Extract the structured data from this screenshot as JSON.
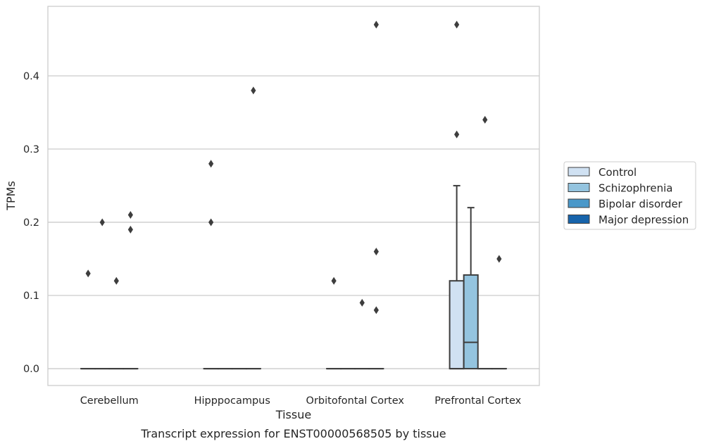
{
  "chart_data": {
    "type": "box",
    "caption": "Transcript expression for ENST00000568505 by tissue",
    "xlabel": "Tissue",
    "ylabel": "TPMs",
    "ylim": [
      -0.023,
      0.495
    ],
    "yticks": [
      "0.0",
      "0.1",
      "0.2",
      "0.3",
      "0.4"
    ],
    "ytick_values": [
      0.0,
      0.1,
      0.2,
      0.3,
      0.4
    ],
    "grid": "horizontal",
    "legend_position": "right",
    "categories": [
      "Cerebellum",
      "Hipppocampus",
      "Orbitofontal Cortex",
      "Prefrontal Cortex"
    ],
    "series": [
      {
        "name": "Control",
        "color": "#d0e1f2",
        "boxes": [
          {
            "q1": 0,
            "median": 0,
            "q3": 0,
            "whisker_low": 0,
            "whisker_high": 0,
            "outliers": [
              0.13
            ]
          },
          {
            "q1": 0,
            "median": 0,
            "q3": 0,
            "whisker_low": 0,
            "whisker_high": 0,
            "outliers": [
              0.28,
              0.2
            ]
          },
          {
            "q1": 0,
            "median": 0,
            "q3": 0,
            "whisker_low": 0,
            "whisker_high": 0,
            "outliers": [
              0.12
            ]
          },
          {
            "q1": 0,
            "median": 0,
            "q3": 0.12,
            "whisker_low": 0,
            "whisker_high": 0.25,
            "outliers": [
              0.47,
              0.32
            ]
          }
        ]
      },
      {
        "name": "Schizophrenia",
        "color": "#94c4df",
        "boxes": [
          {
            "q1": 0,
            "median": 0,
            "q3": 0,
            "whisker_low": 0,
            "whisker_high": 0,
            "outliers": [
              0.2
            ]
          },
          {
            "q1": 0,
            "median": 0,
            "q3": 0,
            "whisker_low": 0,
            "whisker_high": 0,
            "outliers": []
          },
          {
            "q1": 0,
            "median": 0,
            "q3": 0,
            "whisker_low": 0,
            "whisker_high": 0,
            "outliers": []
          },
          {
            "q1": 0,
            "median": 0.036,
            "q3": 0.128,
            "whisker_low": 0,
            "whisker_high": 0.22,
            "outliers": []
          }
        ]
      },
      {
        "name": "Bipolar disorder",
        "color": "#4a98c9",
        "boxes": [
          {
            "q1": 0,
            "median": 0,
            "q3": 0,
            "whisker_low": 0,
            "whisker_high": 0,
            "outliers": [
              0.12
            ]
          },
          {
            "q1": 0,
            "median": 0,
            "q3": 0,
            "whisker_low": 0,
            "whisker_high": 0,
            "outliers": []
          },
          {
            "q1": 0,
            "median": 0,
            "q3": 0,
            "whisker_low": 0,
            "whisker_high": 0,
            "outliers": [
              0.09
            ]
          },
          {
            "q1": 0,
            "median": 0,
            "q3": 0,
            "whisker_low": 0,
            "whisker_high": 0,
            "outliers": [
              0.34
            ]
          }
        ]
      },
      {
        "name": "Major depression",
        "color": "#1764ab",
        "boxes": [
          {
            "q1": 0,
            "median": 0,
            "q3": 0,
            "whisker_low": 0,
            "whisker_high": 0,
            "outliers": [
              0.21,
              0.19
            ]
          },
          {
            "q1": 0,
            "median": 0,
            "q3": 0,
            "whisker_low": 0,
            "whisker_high": 0,
            "outliers": [
              0.38
            ]
          },
          {
            "q1": 0,
            "median": 0,
            "q3": 0,
            "whisker_low": 0,
            "whisker_high": 0,
            "outliers": [
              0.47,
              0.16,
              0.08
            ]
          },
          {
            "q1": 0,
            "median": 0,
            "q3": 0,
            "whisker_low": 0,
            "whisker_high": 0,
            "outliers": [
              0.15
            ]
          }
        ]
      }
    ]
  },
  "colors": {
    "grid": "#cccccc",
    "frame": "#cccccc",
    "box_edge": "#3d3d3d",
    "text": "#262626"
  }
}
